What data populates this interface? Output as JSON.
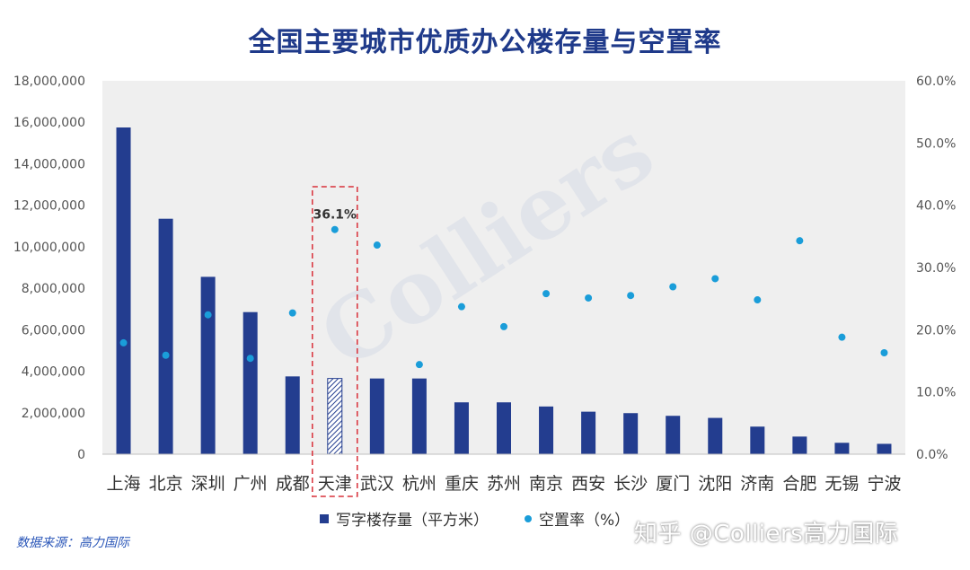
{
  "title": "全国主要城市优质办公楼存量与空置率",
  "source": "数据来源：高力国际",
  "credit": "知乎 @Colliers高力国际",
  "watermark": "Colliers",
  "colors": {
    "bar": "#233d8f",
    "dot": "#1a9dd9",
    "plot_bg": "#efefef",
    "highlight": "#d9303a"
  },
  "chart_data": {
    "type": "bar",
    "categories": [
      "上海",
      "北京",
      "深圳",
      "广州",
      "成都",
      "天津",
      "武汉",
      "杭州",
      "重庆",
      "苏州",
      "南京",
      "西安",
      "长沙",
      "厦门",
      "沈阳",
      "济南",
      "合肥",
      "无锡",
      "宁波"
    ],
    "series": [
      {
        "name": "写字楼存量（平方米）",
        "type": "bar",
        "axis": "left",
        "values": [
          15750000,
          11350000,
          8550000,
          6850000,
          3750000,
          3650000,
          3650000,
          3650000,
          2500000,
          2500000,
          2300000,
          2050000,
          1980000,
          1850000,
          1750000,
          1330000,
          850000,
          550000,
          500000
        ]
      },
      {
        "name": "空置率（%）",
        "type": "scatter",
        "axis": "right",
        "values": [
          17.9,
          15.9,
          22.4,
          15.4,
          22.7,
          36.1,
          33.6,
          14.4,
          23.7,
          20.5,
          25.8,
          25.1,
          25.5,
          26.9,
          28.2,
          24.8,
          34.3,
          18.8,
          16.3
        ]
      }
    ],
    "y_left": {
      "ylim": [
        0,
        18000000
      ],
      "ticks": [
        "0",
        "2,000,000",
        "4,000,000",
        "6,000,000",
        "8,000,000",
        "10,000,000",
        "12,000,000",
        "14,000,000",
        "16,000,000",
        "18,000,000"
      ]
    },
    "y_right": {
      "ylim": [
        0,
        60
      ],
      "ticks": [
        "0.0%",
        "10.0%",
        "20.0%",
        "30.0%",
        "40.0%",
        "50.0%",
        "60.0%"
      ]
    },
    "highlight": {
      "category": "天津",
      "label": "36.1%"
    },
    "legend_position": "bottom",
    "grid": false
  }
}
